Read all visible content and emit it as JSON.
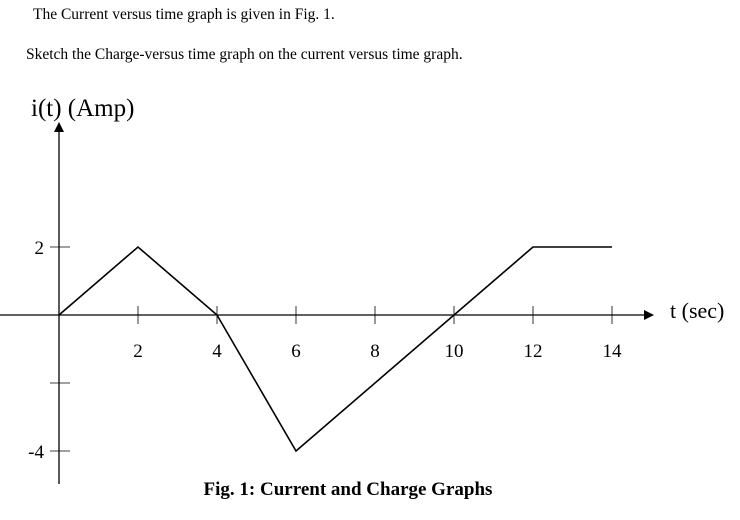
{
  "text": {
    "intro": "The Current versus time graph is given in Fig. 1.",
    "instruction": "Sketch the Charge-versus time graph on the current versus time graph."
  },
  "chart_data": {
    "type": "line",
    "title": "Fig. 1: Current and Charge Graphs",
    "xlabel": "t (sec)",
    "ylabel": "i(t) (Amp)",
    "xlim": [
      0,
      14
    ],
    "ylim": [
      -4,
      2
    ],
    "x_ticks": [
      2,
      4,
      6,
      8,
      10,
      12,
      14
    ],
    "x_tick_labels": [
      "2",
      "4",
      "6",
      "8",
      "10",
      "12",
      "14"
    ],
    "y_ticks": [
      2,
      -4
    ],
    "y_tick_labels": [
      "2",
      "-4"
    ],
    "grid": false,
    "series": [
      {
        "x": [
          0,
          2,
          4,
          6,
          12,
          14
        ],
        "y": [
          0,
          2,
          0,
          -4,
          2,
          2
        ],
        "color": "#000000"
      }
    ]
  }
}
